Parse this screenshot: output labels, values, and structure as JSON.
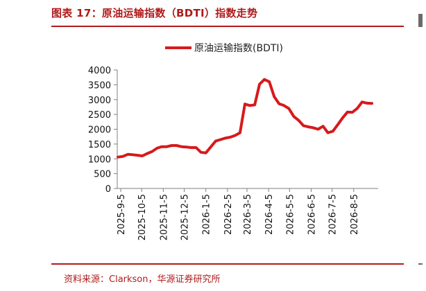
{
  "figure": {
    "title": "图表 17：原油运输指数（BDTI）指数走势",
    "source": "资料来源：Clarkson，华源证券研究所"
  },
  "colors": {
    "accent": "#b01a1a",
    "series": "#d7191c",
    "axis": "#7f7f7f"
  },
  "chart_data": {
    "type": "line",
    "title": "",
    "xlabel": "",
    "ylabel": "",
    "ylim": [
      0,
      4000
    ],
    "yticks": [
      0,
      500,
      1000,
      1500,
      2000,
      2500,
      3000,
      3500,
      4000
    ],
    "xticks": [
      "2025-9-5",
      "2025-10-5",
      "2025-11-5",
      "2025-12-5",
      "2026-1-5",
      "2026-2-5",
      "2026-3-5",
      "2026-4-5",
      "2026-5-5",
      "2026-6-5",
      "2026-7-5",
      "2026-8-5"
    ],
    "legend": "top-center",
    "grid": false,
    "series": [
      {
        "name": "原油运输指数(BDTI)",
        "x": [
          "2025-9-1",
          "2025-9-8",
          "2025-9-15",
          "2025-9-22",
          "2025-9-29",
          "2025-10-6",
          "2025-10-13",
          "2025-10-20",
          "2025-10-27",
          "2025-11-3",
          "2025-11-10",
          "2025-11-17",
          "2025-11-24",
          "2025-12-1",
          "2025-12-8",
          "2025-12-15",
          "2025-12-22",
          "2025-12-29",
          "2026-1-5",
          "2026-1-12",
          "2026-1-19",
          "2026-1-26",
          "2026-2-2",
          "2026-2-9",
          "2026-2-16",
          "2026-2-23",
          "2026-3-2",
          "2026-3-9",
          "2026-3-16",
          "2026-3-23",
          "2026-3-30",
          "2026-4-6",
          "2026-4-13",
          "2026-4-20",
          "2026-4-27",
          "2026-5-4",
          "2026-5-11",
          "2026-5-18",
          "2026-5-25",
          "2026-6-1",
          "2026-6-8",
          "2026-6-15",
          "2026-6-22",
          "2026-6-29",
          "2026-7-6",
          "2026-7-13",
          "2026-7-20",
          "2026-7-27",
          "2026-8-3",
          "2026-8-10",
          "2026-8-17",
          "2026-8-24",
          "2026-8-31"
        ],
        "values": [
          1060,
          1080,
          1150,
          1140,
          1120,
          1100,
          1180,
          1250,
          1360,
          1410,
          1410,
          1450,
          1450,
          1410,
          1400,
          1380,
          1380,
          1220,
          1200,
          1400,
          1600,
          1650,
          1700,
          1730,
          1790,
          1880,
          2850,
          2800,
          2820,
          3520,
          3680,
          3600,
          3100,
          2860,
          2800,
          2700,
          2430,
          2300,
          2120,
          2080,
          2050,
          2000,
          2100,
          1880,
          1930,
          2150,
          2380,
          2580,
          2570,
          2700,
          2920,
          2880,
          2870
        ]
      }
    ]
  }
}
